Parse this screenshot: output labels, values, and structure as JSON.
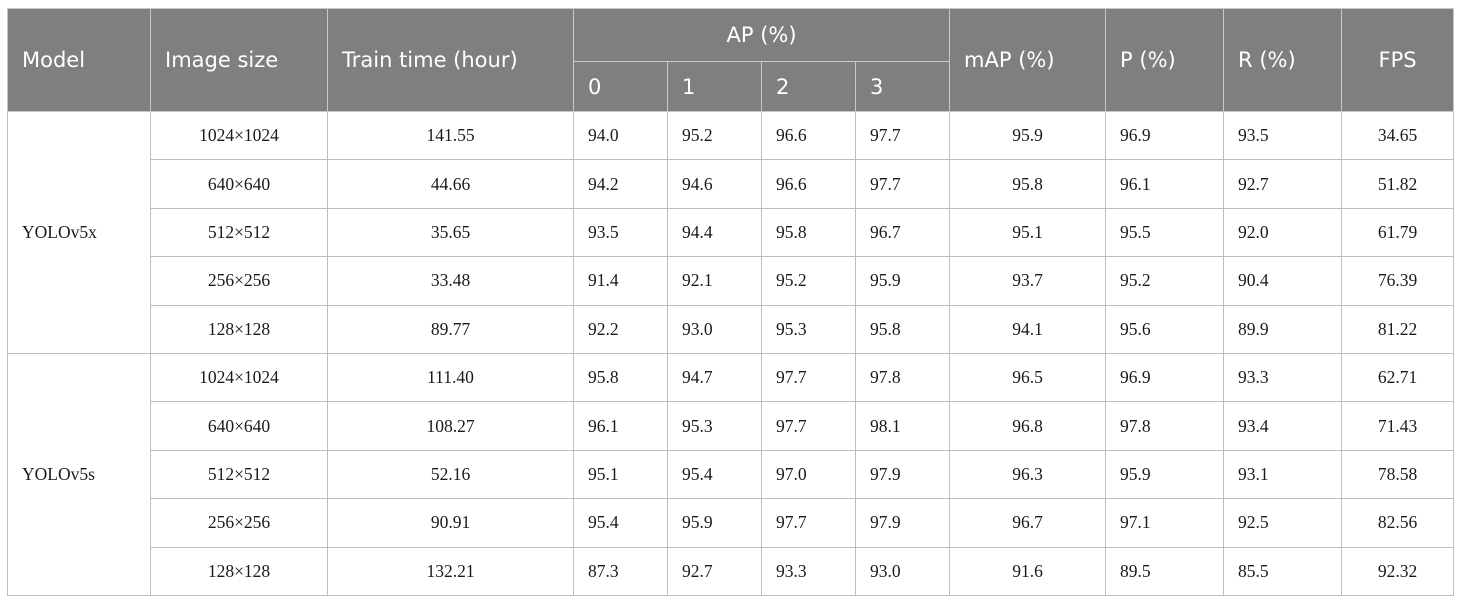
{
  "headers": {
    "model": "Model",
    "image_size": "Image size",
    "train_time": "Train time (hour)",
    "ap": "AP (%)",
    "ap_classes": [
      "0",
      "1",
      "2",
      "3"
    ],
    "map": "mAP (%)",
    "p": "P (%)",
    "r": "R (%)",
    "fps": "FPS"
  },
  "groups": [
    {
      "model": "YOLOv5x",
      "rows": [
        {
          "size": "1024×1024",
          "time": "141.55",
          "ap": [
            "94.0",
            "95.2",
            "96.6",
            "97.7"
          ],
          "map": "95.9",
          "p": "96.9",
          "r": "93.5",
          "fps": "34.65"
        },
        {
          "size": "640×640",
          "time": "44.66",
          "ap": [
            "94.2",
            "94.6",
            "96.6",
            "97.7"
          ],
          "map": "95.8",
          "p": "96.1",
          "r": "92.7",
          "fps": "51.82"
        },
        {
          "size": "512×512",
          "time": "35.65",
          "ap": [
            "93.5",
            "94.4",
            "95.8",
            "96.7"
          ],
          "map": "95.1",
          "p": "95.5",
          "r": "92.0",
          "fps": "61.79"
        },
        {
          "size": "256×256",
          "time": "33.48",
          "ap": [
            "91.4",
            "92.1",
            "95.2",
            "95.9"
          ],
          "map": "93.7",
          "p": "95.2",
          "r": "90.4",
          "fps": "76.39"
        },
        {
          "size": "128×128",
          "time": "89.77",
          "ap": [
            "92.2",
            "93.0",
            "95.3",
            "95.8"
          ],
          "map": "94.1",
          "p": "95.6",
          "r": "89.9",
          "fps": "81.22"
        }
      ]
    },
    {
      "model": "YOLOv5s",
      "rows": [
        {
          "size": "1024×1024",
          "time": "111.40",
          "ap": [
            "95.8",
            "94.7",
            "97.7",
            "97.8"
          ],
          "map": "96.5",
          "p": "96.9",
          "r": "93.3",
          "fps": "62.71"
        },
        {
          "size": "640×640",
          "time": "108.27",
          "ap": [
            "96.1",
            "95.3",
            "97.7",
            "98.1"
          ],
          "map": "96.8",
          "p": "97.8",
          "r": "93.4",
          "fps": "71.43"
        },
        {
          "size": "512×512",
          "time": "52.16",
          "ap": [
            "95.1",
            "95.4",
            "97.0",
            "97.9"
          ],
          "map": "96.3",
          "p": "95.9",
          "r": "93.1",
          "fps": "78.58"
        },
        {
          "size": "256×256",
          "time": "90.91",
          "ap": [
            "95.4",
            "95.9",
            "97.7",
            "97.9"
          ],
          "map": "96.7",
          "p": "97.1",
          "r": "92.5",
          "fps": "82.56"
        },
        {
          "size": "128×128",
          "time": "132.21",
          "ap": [
            "87.3",
            "92.7",
            "93.3",
            "93.0"
          ],
          "map": "91.6",
          "p": "89.5",
          "r": "85.5",
          "fps": "92.32"
        }
      ]
    }
  ]
}
